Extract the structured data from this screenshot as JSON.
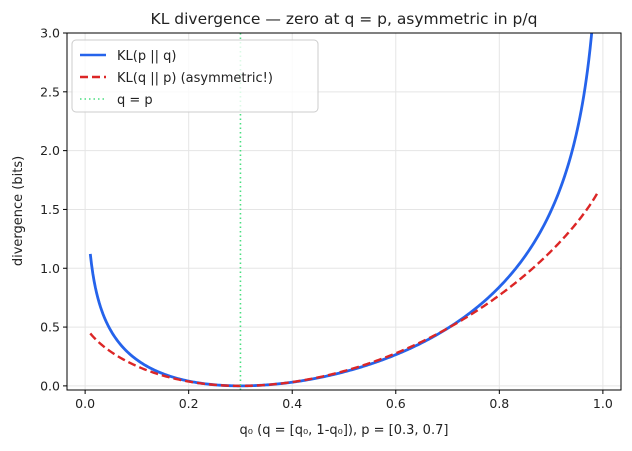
{
  "chart_data": {
    "type": "line",
    "title": "KL divergence — zero at q = p, asymmetric in p/q",
    "xlabel": "q₀  (q = [q₀, 1-q₀]),  p = [0.3, 0.7]",
    "ylabel": "divergence  (bits)",
    "xlim": [
      -0.035,
      1.035
    ],
    "ylim": [
      -0.035,
      3.0
    ],
    "xticks": [
      0.0,
      0.2,
      0.4,
      0.6,
      0.8,
      1.0
    ],
    "xtick_labels": [
      "0.0",
      "0.2",
      "0.4",
      "0.6",
      "0.8",
      "1.0"
    ],
    "yticks": [
      0.0,
      0.5,
      1.0,
      1.5,
      2.0,
      2.5,
      3.0
    ],
    "ytick_labels": [
      "0.0",
      "0.5",
      "1.0",
      "1.5",
      "2.0",
      "2.5",
      "3.0"
    ],
    "grid": true,
    "legend_position": "top-left",
    "p": [
      0.3,
      0.7
    ],
    "q_range": [
      0.01,
      0.99
    ],
    "series": [
      {
        "name": "KL(p || q)",
        "function": "kl_p_q",
        "color": "#2563eb",
        "style": "solid"
      },
      {
        "name": "KL(q || p)  (asymmetric!)",
        "function": "kl_q_p",
        "color": "#dc2626",
        "style": "dashed"
      },
      {
        "name": "q = p",
        "function": "vline",
        "x": 0.3,
        "color": "#4ade80",
        "style": "dotted"
      }
    ]
  }
}
